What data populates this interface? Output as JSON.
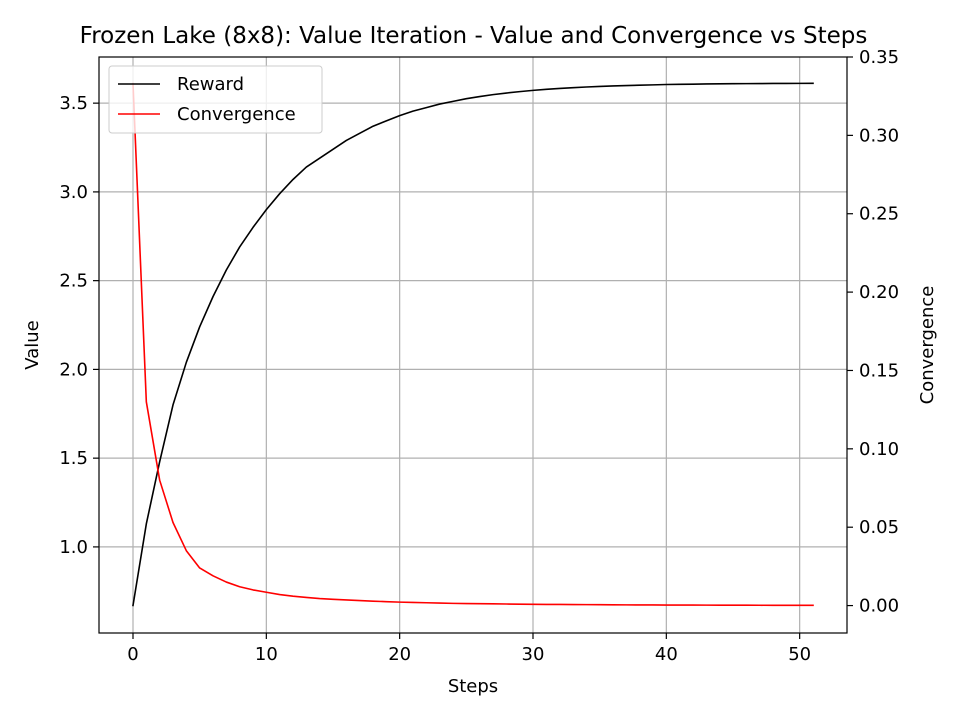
{
  "chart_data": {
    "type": "line",
    "title": "Frozen Lake (8x8): Value Iteration - Value and Convergence vs Steps",
    "xlabel": "Steps",
    "ylabel": "Value",
    "y2label": "Convergence",
    "xlim": [
      -2.55,
      53.55
    ],
    "ylim": [
      0.515,
      3.76
    ],
    "y2lim": [
      -0.0175,
      0.35
    ],
    "x_ticks": [
      0,
      10,
      20,
      30,
      40,
      50
    ],
    "y_ticks": [
      1.0,
      1.5,
      2.0,
      2.5,
      3.0,
      3.5
    ],
    "y_tick_labels": [
      "1.0",
      "1.5",
      "2.0",
      "2.5",
      "3.0",
      "3.5"
    ],
    "y2_ticks": [
      0.0,
      0.05,
      0.1,
      0.15,
      0.2,
      0.25,
      0.3,
      0.35
    ],
    "y2_tick_labels": [
      "0.00",
      "0.05",
      "0.10",
      "0.15",
      "0.20",
      "0.25",
      "0.30",
      "0.35"
    ],
    "grid": true,
    "legend_position": "top-left",
    "series": [
      {
        "name": "Reward",
        "color": "#000000",
        "axis": "left",
        "x": [
          0,
          1,
          2,
          3,
          4,
          5,
          6,
          7,
          8,
          9,
          10,
          11,
          12,
          13,
          14,
          15,
          16,
          17,
          18,
          19,
          20,
          21,
          22,
          23,
          24,
          25,
          26,
          27,
          28,
          29,
          30,
          31,
          32,
          33,
          34,
          35,
          36,
          37,
          38,
          39,
          40,
          41,
          42,
          43,
          44,
          45,
          46,
          47,
          48,
          49,
          50,
          51
        ],
        "values": [
          0.67,
          1.13,
          1.48,
          1.8,
          2.04,
          2.24,
          2.41,
          2.56,
          2.69,
          2.8,
          2.9,
          2.99,
          3.07,
          3.14,
          3.19,
          3.24,
          3.29,
          3.33,
          3.37,
          3.4,
          3.43,
          3.455,
          3.475,
          3.495,
          3.51,
          3.525,
          3.537,
          3.548,
          3.557,
          3.565,
          3.572,
          3.578,
          3.583,
          3.587,
          3.591,
          3.594,
          3.597,
          3.599,
          3.601,
          3.603,
          3.605,
          3.606,
          3.607,
          3.608,
          3.609,
          3.6095,
          3.61,
          3.6105,
          3.611,
          3.6112,
          3.6114,
          3.6116
        ]
      },
      {
        "name": "Convergence",
        "color": "#ff0000",
        "axis": "right",
        "x": [
          0,
          1,
          2,
          3,
          4,
          5,
          6,
          7,
          8,
          9,
          10,
          11,
          12,
          13,
          14,
          15,
          16,
          17,
          18,
          19,
          20,
          21,
          22,
          23,
          24,
          25,
          26,
          27,
          28,
          29,
          30,
          31,
          32,
          33,
          34,
          35,
          36,
          37,
          38,
          39,
          40,
          41,
          42,
          43,
          44,
          45,
          46,
          47,
          48,
          49,
          50,
          51
        ],
        "values": [
          0.333,
          0.13,
          0.08,
          0.053,
          0.035,
          0.024,
          0.019,
          0.015,
          0.012,
          0.01,
          0.0085,
          0.007,
          0.006,
          0.0052,
          0.0045,
          0.004,
          0.0036,
          0.0032,
          0.0028,
          0.0025,
          0.0022,
          0.002,
          0.0018,
          0.0016,
          0.0014,
          0.0013,
          0.0012,
          0.0011,
          0.001,
          0.0009,
          0.0008,
          0.00075,
          0.0007,
          0.00065,
          0.0006,
          0.00055,
          0.0005,
          0.00045,
          0.0004,
          0.00038,
          0.00035,
          0.00033,
          0.0003,
          0.00028,
          0.00026,
          0.00024,
          0.00022,
          0.0002,
          0.00019,
          0.00018,
          0.00017,
          0.00016
        ]
      }
    ]
  }
}
